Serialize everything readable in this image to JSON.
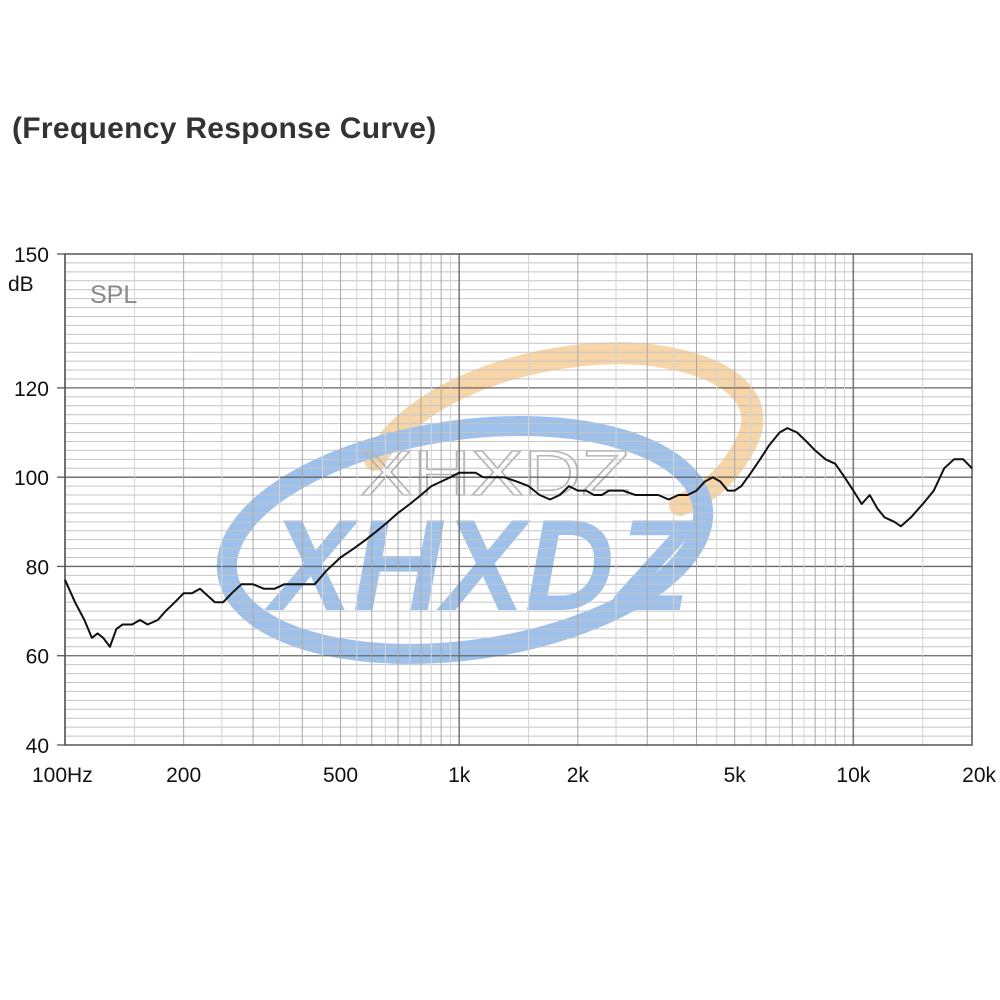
{
  "title": "(Frequency Response Curve)",
  "watermark": {
    "text_outline": "XHXDZ",
    "text_filled": "XHXDZ",
    "blue": "#4f8fdb",
    "orange": "#f2b35e"
  },
  "chart_data": {
    "type": "line",
    "title": "(Frequency Response Curve)",
    "xlabel": "",
    "ylabel": "",
    "y_unit": "dB",
    "x_scale": "log",
    "xlim": [
      100,
      20000
    ],
    "ylim": [
      40,
      150
    ],
    "grid": true,
    "y_ticks": [
      40,
      60,
      80,
      100,
      120,
      150
    ],
    "y_tick_labels": [
      "40",
      "60",
      "80",
      "100",
      "120",
      "150"
    ],
    "x_ticks": [
      100,
      200,
      500,
      1000,
      2000,
      5000,
      10000,
      20000
    ],
    "x_tick_labels": [
      "100Hz",
      "200",
      "500",
      "1k",
      "2k",
      "5k",
      "10k",
      "20k"
    ],
    "series_label": "SPL",
    "line_color": "#111111",
    "series": [
      {
        "name": "SPL",
        "x": [
          100,
          106,
          112,
          117,
          121,
          125,
          130,
          135,
          140,
          148,
          155,
          162,
          172,
          180,
          190,
          200,
          210,
          220,
          240,
          252,
          265,
          280,
          300,
          320,
          340,
          360,
          380,
          400,
          430,
          460,
          500,
          540,
          580,
          620,
          660,
          700,
          750,
          800,
          850,
          900,
          950,
          1000,
          1050,
          1100,
          1150,
          1200,
          1300,
          1400,
          1500,
          1600,
          1700,
          1800,
          1900,
          2000,
          2100,
          2200,
          2300,
          2400,
          2600,
          2800,
          3000,
          3200,
          3400,
          3600,
          3800,
          4000,
          4200,
          4400,
          4600,
          4800,
          5000,
          5200,
          5500,
          5800,
          6100,
          6500,
          6800,
          7200,
          7600,
          8000,
          8500,
          9000,
          9500,
          10000,
          10500,
          11000,
          11500,
          12000,
          12700,
          13200,
          14000,
          15000,
          16000,
          17000,
          18000,
          19000,
          20000
        ],
        "y": [
          77,
          72,
          68,
          64,
          65,
          64,
          62,
          66,
          67,
          67,
          68,
          67,
          68,
          70,
          72,
          74,
          74,
          75,
          72,
          72,
          74,
          76,
          76,
          75,
          75,
          76,
          76,
          76,
          76,
          79,
          82,
          84,
          86,
          88,
          90,
          92,
          94,
          96,
          98,
          99,
          100,
          101,
          101,
          101,
          100,
          100,
          100,
          99,
          98,
          96,
          95,
          96,
          98,
          97,
          97,
          96,
          96,
          97,
          97,
          96,
          96,
          96,
          95,
          96,
          96,
          97,
          99,
          100,
          99,
          97,
          97,
          98,
          101,
          104,
          107,
          110,
          111,
          110,
          108,
          106,
          104,
          103,
          100,
          97,
          94,
          96,
          93,
          91,
          90,
          89,
          91,
          94,
          97,
          102,
          104,
          104,
          102
        ]
      }
    ]
  }
}
